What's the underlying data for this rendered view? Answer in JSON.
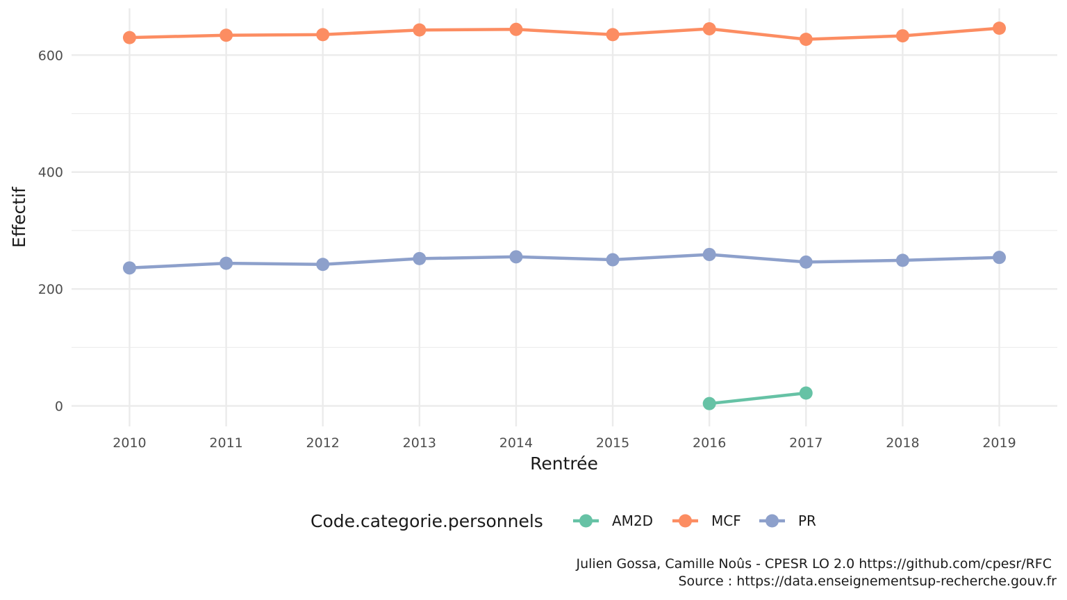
{
  "chart_data": {
    "type": "line",
    "x": [
      2010,
      2011,
      2012,
      2013,
      2014,
      2015,
      2016,
      2017,
      2018,
      2019
    ],
    "x_tick_labels": [
      "2010",
      "2011",
      "2012",
      "2013",
      "2014",
      "2015",
      "2016",
      "2017",
      "2018",
      "2019"
    ],
    "y_ticks": [
      0,
      200,
      400,
      600
    ],
    "y_tick_labels": [
      "0",
      "200",
      "400",
      "600"
    ],
    "xlim": [
      2009.4,
      2019.6
    ],
    "ylim": [
      -35,
      680
    ],
    "xlabel": "Rentrée",
    "ylabel": "Effectif",
    "grid": true,
    "legend": {
      "title": "Code.categorie.personnels",
      "placement": "bottom"
    },
    "series": [
      {
        "name": "AM2D",
        "color": "#66C2A5",
        "x": [
          2016,
          2017
        ],
        "values": [
          4,
          22
        ]
      },
      {
        "name": "MCF",
        "color": "#FC8D62",
        "x": [
          2010,
          2011,
          2012,
          2013,
          2014,
          2015,
          2016,
          2017,
          2018,
          2019
        ],
        "values": [
          630,
          634,
          635,
          643,
          644,
          635,
          645,
          627,
          633,
          646
        ]
      },
      {
        "name": "PR",
        "color": "#8DA0CB",
        "x": [
          2010,
          2011,
          2012,
          2013,
          2014,
          2015,
          2016,
          2017,
          2018,
          2019
        ],
        "values": [
          236,
          244,
          242,
          252,
          255,
          250,
          259,
          246,
          249,
          254
        ]
      }
    ],
    "caption": [
      "Julien Gossa, Camille Noûs - CPESR LO 2.0 https://github.com/cpesr/RFC",
      "Source : https://data.enseignementsup-recherche.gouv.fr"
    ]
  }
}
